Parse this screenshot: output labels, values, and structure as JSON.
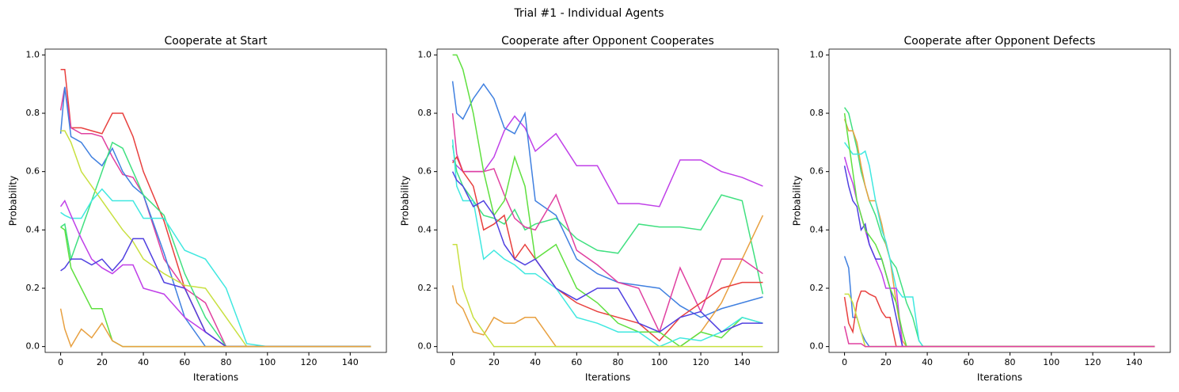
{
  "title": "Trial #1 - Individual Agents",
  "chart_data": [
    {
      "type": "line",
      "title": "Cooperate at Start",
      "xlabel": "Iterations",
      "ylabel": "Probability",
      "xlim": [
        -7.5,
        157.5
      ],
      "xticks": [
        0,
        20,
        40,
        60,
        80,
        100,
        120,
        140
      ],
      "ylim": [
        -0.02,
        1.02
      ],
      "yticks": [
        {
          "value": 0,
          "label": "0.0"
        },
        0.2,
        0.4,
        0.6,
        0.8,
        {
          "value": 1,
          "label": "1.0"
        }
      ],
      "x": [
        0,
        2,
        5,
        10,
        15,
        20,
        25,
        30,
        35,
        40,
        50,
        60,
        70,
        80,
        90,
        100,
        110,
        120,
        130,
        140,
        150
      ],
      "series": [
        {
          "color": "#e8403e",
          "values": [
            0.95,
            0.95,
            0.75,
            0.75,
            0.74,
            0.73,
            0.8,
            0.8,
            0.72,
            0.6,
            0.43,
            0.2,
            0.05,
            0,
            0,
            0,
            0,
            0,
            0,
            0,
            0
          ]
        },
        {
          "color": "#e040a0",
          "values": [
            0.81,
            0.89,
            0.75,
            0.73,
            0.73,
            0.72,
            0.65,
            0.59,
            0.58,
            0.52,
            0.3,
            0.2,
            0.15,
            0,
            0,
            0,
            0,
            0,
            0,
            0,
            0
          ]
        },
        {
          "color": "#4080e0",
          "values": [
            0.73,
            0.89,
            0.72,
            0.7,
            0.65,
            0.62,
            0.68,
            0.6,
            0.55,
            0.52,
            0.32,
            0.1,
            0,
            0,
            0,
            0,
            0,
            0,
            0,
            0,
            0
          ]
        },
        {
          "color": "#40e080",
          "values": [
            0.41,
            0.42,
            0.3,
            0.4,
            0.5,
            0.6,
            0.7,
            0.68,
            0.6,
            0.52,
            0.45,
            0.25,
            0.1,
            0,
            0,
            0,
            0,
            0,
            0,
            0,
            0
          ]
        },
        {
          "color": "#c8e040",
          "values": [
            0.74,
            0.74,
            0.7,
            0.6,
            0.55,
            0.5,
            0.45,
            0.4,
            0.36,
            0.3,
            0.25,
            0.21,
            0.2,
            0.1,
            0,
            0,
            0,
            0,
            0,
            0,
            0
          ]
        },
        {
          "color": "#40e8e0",
          "values": [
            0.46,
            0.45,
            0.44,
            0.44,
            0.5,
            0.54,
            0.5,
            0.5,
            0.5,
            0.44,
            0.44,
            0.33,
            0.3,
            0.2,
            0.01,
            0,
            0,
            0,
            0,
            0,
            0
          ]
        },
        {
          "color": "#c040e8",
          "values": [
            0.48,
            0.5,
            0.45,
            0.37,
            0.3,
            0.27,
            0.25,
            0.28,
            0.28,
            0.2,
            0.18,
            0.1,
            0.05,
            0,
            0,
            0,
            0,
            0,
            0,
            0,
            0
          ]
        },
        {
          "color": "#5040e0",
          "values": [
            0.26,
            0.27,
            0.3,
            0.3,
            0.28,
            0.3,
            0.26,
            0.3,
            0.37,
            0.37,
            0.22,
            0.2,
            0.05,
            0,
            0,
            0,
            0,
            0,
            0,
            0,
            0
          ]
        },
        {
          "color": "#60e040",
          "values": [
            0.41,
            0.4,
            0.27,
            0.2,
            0.13,
            0.13,
            0.02,
            0,
            0,
            0,
            0,
            0,
            0,
            0,
            0,
            0,
            0,
            0,
            0,
            0,
            0
          ]
        },
        {
          "color": "#e8a040",
          "values": [
            0.13,
            0.06,
            0,
            0.06,
            0.03,
            0.08,
            0.02,
            0,
            0,
            0,
            0,
            0,
            0,
            0,
            0,
            0,
            0,
            0,
            0,
            0,
            0
          ]
        }
      ]
    },
    {
      "type": "line",
      "title": "Cooperate after Opponent Cooperates",
      "xlabel": "Iterations",
      "ylabel": "Probability",
      "xlim": [
        -7.5,
        157.5
      ],
      "xticks": [
        0,
        20,
        40,
        60,
        80,
        100,
        120,
        140
      ],
      "ylim": [
        -0.02,
        1.02
      ],
      "yticks": [
        {
          "value": 0,
          "label": "0.0"
        },
        0.2,
        0.4,
        0.6,
        0.8,
        {
          "value": 1,
          "label": "1.0"
        }
      ],
      "x": [
        0,
        2,
        5,
        10,
        15,
        20,
        25,
        30,
        35,
        40,
        50,
        60,
        70,
        80,
        90,
        100,
        110,
        120,
        130,
        140,
        150
      ],
      "series": [
        {
          "color": "#c040e8",
          "values": [
            0.64,
            0.62,
            0.6,
            0.6,
            0.6,
            0.65,
            0.74,
            0.79,
            0.75,
            0.67,
            0.73,
            0.62,
            0.62,
            0.49,
            0.49,
            0.48,
            0.64,
            0.64,
            0.6,
            0.58,
            0.55
          ]
        },
        {
          "color": "#40e080",
          "values": [
            0.69,
            0.6,
            0.55,
            0.5,
            0.45,
            0.44,
            0.42,
            0.47,
            0.4,
            0.42,
            0.44,
            0.37,
            0.33,
            0.32,
            0.42,
            0.41,
            0.41,
            0.4,
            0.52,
            0.5,
            0.18
          ]
        },
        {
          "color": "#4080e0",
          "values": [
            0.91,
            0.8,
            0.78,
            0.85,
            0.9,
            0.85,
            0.75,
            0.73,
            0.8,
            0.5,
            0.45,
            0.3,
            0.25,
            0.22,
            0.21,
            0.2,
            0.14,
            0.1,
            0.13,
            0.15,
            0.17
          ]
        },
        {
          "color": "#e8a040",
          "values": [
            0.21,
            0.15,
            0.13,
            0.05,
            0.04,
            0.1,
            0.08,
            0.08,
            0.1,
            0.1,
            0,
            0,
            0,
            0,
            0,
            0,
            0,
            0.05,
            0.15,
            0.3,
            0.45
          ]
        },
        {
          "color": "#e040a0",
          "values": [
            0.8,
            0.66,
            0.6,
            0.6,
            0.6,
            0.61,
            0.52,
            0.44,
            0.41,
            0.4,
            0.52,
            0.33,
            0.28,
            0.22,
            0.2,
            0.05,
            0.27,
            0.12,
            0.3,
            0.3,
            0.25
          ]
        },
        {
          "color": "#e8403e",
          "values": [
            0.63,
            0.65,
            0.6,
            0.55,
            0.4,
            0.42,
            0.45,
            0.3,
            0.35,
            0.3,
            0.2,
            0.15,
            0.12,
            0.1,
            0.08,
            0.02,
            0.1,
            0.15,
            0.2,
            0.22,
            0.22
          ]
        },
        {
          "color": "#60e040",
          "values": [
            1,
            1,
            0.95,
            0.8,
            0.6,
            0.45,
            0.5,
            0.65,
            0.55,
            0.3,
            0.35,
            0.2,
            0.15,
            0.08,
            0.05,
            0.05,
            0,
            0.05,
            0.03,
            0.1,
            0.08
          ]
        },
        {
          "color": "#40e8e0",
          "values": [
            0.71,
            0.55,
            0.5,
            0.5,
            0.3,
            0.33,
            0.3,
            0.28,
            0.25,
            0.25,
            0.2,
            0.1,
            0.08,
            0.05,
            0.05,
            0,
            0.03,
            0.02,
            0.05,
            0.1,
            0.08
          ]
        },
        {
          "color": "#5040e0",
          "values": [
            0.6,
            0.57,
            0.55,
            0.48,
            0.5,
            0.45,
            0.35,
            0.3,
            0.28,
            0.3,
            0.2,
            0.16,
            0.2,
            0.2,
            0.08,
            0.05,
            0.1,
            0.12,
            0.05,
            0.08,
            0.08
          ]
        },
        {
          "color": "#c8e040",
          "values": [
            0.35,
            0.35,
            0.2,
            0.1,
            0.05,
            0,
            0,
            0,
            0,
            0,
            0,
            0,
            0,
            0,
            0,
            0,
            0,
            0,
            0,
            0,
            0
          ]
        }
      ]
    },
    {
      "type": "line",
      "title": "Cooperate after Opponent Defects",
      "xlabel": "Iterations",
      "ylabel": "Probability",
      "xlim": [
        -7.5,
        157.5
      ],
      "xticks": [
        0,
        20,
        40,
        60,
        80,
        100,
        120,
        140
      ],
      "ylim": [
        -0.02,
        1.02
      ],
      "yticks": [
        {
          "value": 0,
          "label": "0.0"
        },
        0.2,
        0.4,
        0.6,
        0.8,
        {
          "value": 1,
          "label": "1.0"
        }
      ],
      "x": [
        0,
        2,
        4,
        6,
        8,
        10,
        12,
        15,
        18,
        20,
        22,
        25,
        28,
        30,
        33,
        36,
        38,
        40,
        60,
        100,
        150
      ],
      "series": [
        {
          "color": "#40e080",
          "values": [
            0.82,
            0.8,
            0.74,
            0.68,
            0.6,
            0.55,
            0.5,
            0.45,
            0.38,
            0.35,
            0.3,
            0.27,
            0.2,
            0.15,
            0.1,
            0.02,
            0,
            0,
            0,
            0,
            0
          ]
        },
        {
          "color": "#e8a040",
          "values": [
            0.78,
            0.74,
            0.74,
            0.7,
            0.62,
            0.55,
            0.5,
            0.5,
            0.42,
            0.35,
            0.3,
            0.15,
            0.02,
            0,
            0,
            0,
            0,
            0,
            0,
            0,
            0
          ]
        },
        {
          "color": "#40e8e0",
          "values": [
            0.7,
            0.68,
            0.66,
            0.66,
            0.66,
            0.67,
            0.62,
            0.5,
            0.4,
            0.36,
            0.3,
            0.2,
            0.17,
            0.17,
            0.17,
            0.02,
            0,
            0,
            0,
            0,
            0
          ]
        },
        {
          "color": "#c040e8",
          "values": [
            0.65,
            0.6,
            0.56,
            0.5,
            0.45,
            0.4,
            0.35,
            0.3,
            0.25,
            0.2,
            0.2,
            0.2,
            0,
            0,
            0,
            0,
            0,
            0,
            0,
            0,
            0
          ]
        },
        {
          "color": "#5040e0",
          "values": [
            0.62,
            0.55,
            0.5,
            0.48,
            0.4,
            0.42,
            0.35,
            0.3,
            0.3,
            0.25,
            0.2,
            0.1,
            0,
            0,
            0,
            0,
            0,
            0,
            0,
            0,
            0
          ]
        },
        {
          "color": "#4080e0",
          "values": [
            0.31,
            0.27,
            0.1,
            0.1,
            0.05,
            0.02,
            0,
            0,
            0,
            0,
            0,
            0,
            0,
            0,
            0,
            0,
            0,
            0,
            0,
            0,
            0
          ]
        },
        {
          "color": "#60e040",
          "values": [
            0.8,
            0.7,
            0.6,
            0.5,
            0.45,
            0.4,
            0.38,
            0.35,
            0.3,
            0.25,
            0.2,
            0.15,
            0.05,
            0,
            0,
            0,
            0,
            0,
            0,
            0,
            0
          ]
        },
        {
          "color": "#e8403e",
          "values": [
            0.17,
            0.08,
            0.05,
            0.15,
            0.19,
            0.19,
            0.18,
            0.17,
            0.12,
            0.1,
            0.1,
            0,
            0,
            0,
            0,
            0,
            0,
            0,
            0,
            0,
            0
          ]
        },
        {
          "color": "#c8e040",
          "values": [
            0.18,
            0.18,
            0.15,
            0.1,
            0.05,
            0,
            0,
            0,
            0,
            0,
            0,
            0,
            0,
            0,
            0,
            0,
            0,
            0,
            0,
            0,
            0
          ]
        },
        {
          "color": "#e040a0",
          "values": [
            0.07,
            0.01,
            0.01,
            0.01,
            0.01,
            0,
            0,
            0,
            0,
            0,
            0,
            0,
            0,
            0,
            0,
            0,
            0,
            0,
            0,
            0,
            0
          ]
        }
      ]
    }
  ]
}
